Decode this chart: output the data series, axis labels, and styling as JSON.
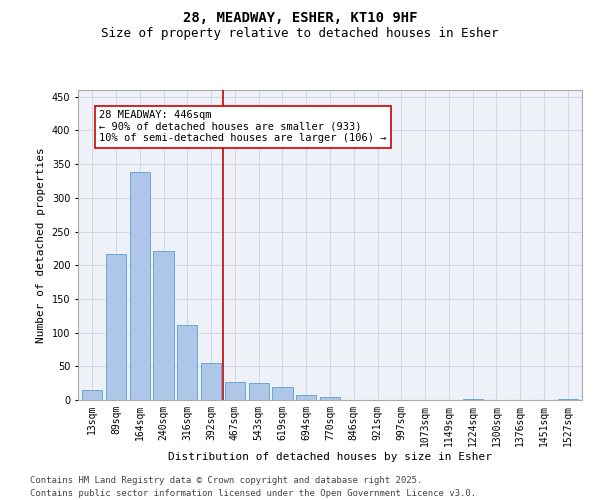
{
  "title_line1": "28, MEADWAY, ESHER, KT10 9HF",
  "title_line2": "Size of property relative to detached houses in Esher",
  "xlabel": "Distribution of detached houses by size in Esher",
  "ylabel": "Number of detached properties",
  "categories": [
    "13sqm",
    "89sqm",
    "164sqm",
    "240sqm",
    "316sqm",
    "392sqm",
    "467sqm",
    "543sqm",
    "619sqm",
    "694sqm",
    "770sqm",
    "846sqm",
    "921sqm",
    "997sqm",
    "1073sqm",
    "1149sqm",
    "1224sqm",
    "1300sqm",
    "1376sqm",
    "1451sqm",
    "1527sqm"
  ],
  "values": [
    15,
    216,
    338,
    221,
    112,
    55,
    26,
    25,
    19,
    8,
    5,
    0,
    0,
    0,
    0,
    0,
    2,
    0,
    0,
    0,
    2
  ],
  "bar_color": "#aec6e8",
  "bar_edge_color": "#5a9fd4",
  "vline_x": 5.5,
  "vline_color": "#cc0000",
  "annotation_text": "28 MEADWAY: 446sqm\n← 90% of detached houses are smaller (933)\n10% of semi-detached houses are larger (106) →",
  "annotation_box_color": "#ffffff",
  "annotation_box_edge": "#cc0000",
  "ylim": [
    0,
    460
  ],
  "grid_color": "#d0d8e8",
  "background_color": "#eef2f8",
  "footer_text": "Contains HM Land Registry data © Crown copyright and database right 2025.\nContains public sector information licensed under the Open Government Licence v3.0.",
  "title_fontsize": 10,
  "subtitle_fontsize": 9,
  "axis_label_fontsize": 8,
  "tick_fontsize": 7,
  "footer_fontsize": 6.5,
  "annotation_fontsize": 7.5
}
